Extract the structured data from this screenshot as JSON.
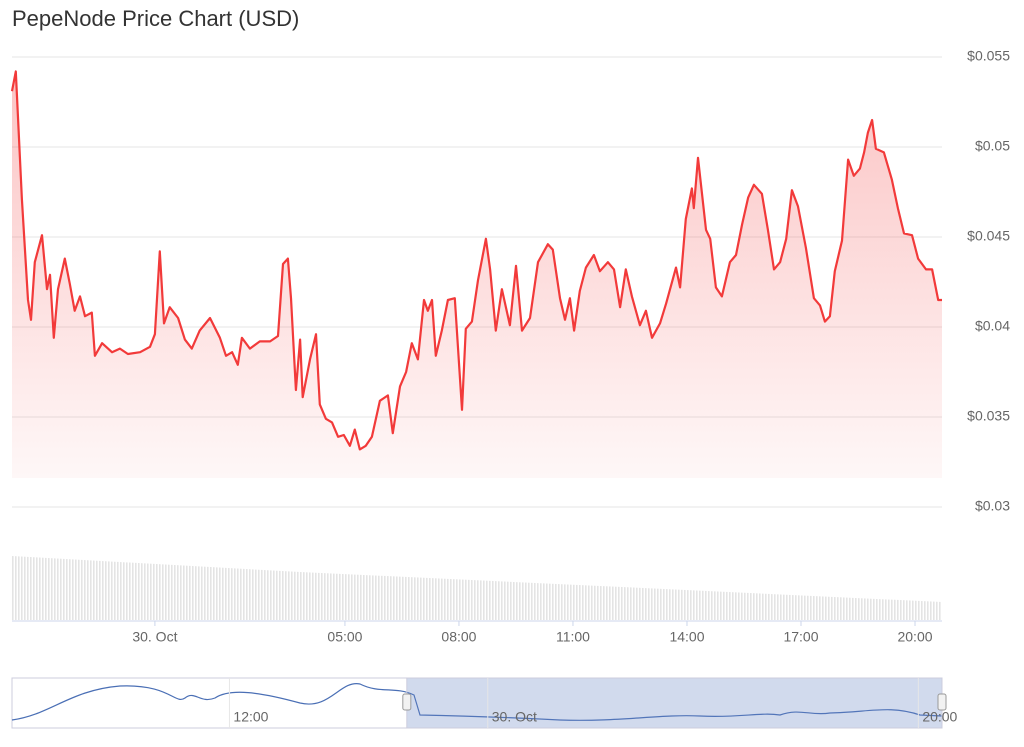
{
  "chart_data": {
    "type": "area",
    "title": "PepeNode Price Chart (USD)",
    "series": [
      {
        "name": "PepeNode",
        "color": "#f23a3a",
        "x": [
          -3.76,
          -3.66,
          -3.5,
          -3.34,
          -3.26,
          -3.16,
          -2.97,
          -2.84,
          -2.76,
          -2.66,
          -2.55,
          -2.37,
          -2.24,
          -2.11,
          -1.97,
          -1.84,
          -1.66,
          -1.58,
          -1.39,
          -1.13,
          -0.92,
          -0.71,
          -0.39,
          -0.13,
          0,
          0.13,
          0.24,
          0.39,
          0.61,
          0.79,
          0.97,
          1.18,
          1.45,
          1.71,
          1.87,
          2.03,
          2.18,
          2.29,
          2.5,
          2.76,
          3.03,
          3.24,
          3.37,
          3.5,
          3.58,
          3.71,
          3.82,
          3.89,
          4.08,
          4.24,
          4.34,
          4.5,
          4.66,
          4.82,
          4.97,
          5.13,
          5.26,
          5.39,
          5.55,
          5.71,
          5.92,
          6.13,
          6.26,
          6.45,
          6.61,
          6.76,
          6.92,
          7.08,
          7.18,
          7.29,
          7.39,
          7.55,
          7.71,
          7.89,
          8.08,
          8.18,
          8.34,
          8.5,
          8.71,
          8.82,
          8.97,
          9.13,
          9.34,
          9.5,
          9.66,
          9.87,
          10.08,
          10.34,
          10.47,
          10.66,
          10.79,
          10.92,
          11.03,
          11.18,
          11.34,
          11.55,
          11.71,
          11.92,
          12.08,
          12.24,
          12.39,
          12.55,
          12.76,
          12.92,
          13.08,
          13.29,
          13.45,
          13.71,
          13.82,
          13.97,
          14.13,
          14.18,
          14.29,
          14.5,
          14.61,
          14.76,
          14.92,
          15.13,
          15.29,
          15.45,
          15.61,
          15.76,
          15.97,
          16.13,
          16.29,
          16.45,
          16.61,
          16.76,
          16.92,
          17.13,
          17.34,
          17.5,
          17.63,
          17.76,
          17.89,
          18.08,
          18.24,
          18.39,
          18.55,
          18.66,
          18.76,
          18.87,
          18.97,
          19.18,
          19.39,
          19.55,
          19.71,
          19.92,
          20.08,
          20.29,
          20.45,
          20.61,
          20.71
        ],
        "values": [
          0.0531,
          0.0542,
          0.0471,
          0.0415,
          0.0404,
          0.0436,
          0.0451,
          0.0421,
          0.0429,
          0.0394,
          0.0421,
          0.0438,
          0.0424,
          0.0409,
          0.0417,
          0.0406,
          0.0408,
          0.0384,
          0.0391,
          0.0386,
          0.0388,
          0.0385,
          0.0386,
          0.0389,
          0.0396,
          0.0442,
          0.0402,
          0.0411,
          0.0405,
          0.0393,
          0.0388,
          0.0398,
          0.0405,
          0.0394,
          0.0384,
          0.0386,
          0.0379,
          0.0394,
          0.0388,
          0.0392,
          0.0392,
          0.0395,
          0.0435,
          0.0438,
          0.0416,
          0.0365,
          0.0393,
          0.0361,
          0.0382,
          0.0396,
          0.0357,
          0.0349,
          0.0347,
          0.0339,
          0.034,
          0.0334,
          0.0343,
          0.0332,
          0.0334,
          0.0339,
          0.0359,
          0.0362,
          0.0341,
          0.0367,
          0.0375,
          0.0391,
          0.0382,
          0.0415,
          0.0409,
          0.0415,
          0.0384,
          0.0398,
          0.0415,
          0.0416,
          0.0354,
          0.0399,
          0.0403,
          0.0426,
          0.0449,
          0.0432,
          0.0398,
          0.0421,
          0.0401,
          0.0434,
          0.0398,
          0.0405,
          0.0436,
          0.0446,
          0.0443,
          0.0416,
          0.0404,
          0.0416,
          0.0398,
          0.042,
          0.0433,
          0.044,
          0.0431,
          0.0436,
          0.0432,
          0.0411,
          0.0432,
          0.0417,
          0.0401,
          0.0409,
          0.0394,
          0.0402,
          0.0413,
          0.0433,
          0.0422,
          0.046,
          0.0477,
          0.0466,
          0.0494,
          0.0454,
          0.0449,
          0.0422,
          0.0417,
          0.0436,
          0.044,
          0.0457,
          0.0472,
          0.0479,
          0.0474,
          0.0454,
          0.0432,
          0.0436,
          0.0449,
          0.0476,
          0.0467,
          0.0444,
          0.0416,
          0.0412,
          0.0403,
          0.0406,
          0.0431,
          0.0448,
          0.0493,
          0.0484,
          0.0488,
          0.0497,
          0.0508,
          0.0515,
          0.0499,
          0.0497,
          0.0482,
          0.0466,
          0.0452,
          0.0451,
          0.0438,
          0.0432,
          0.0432,
          0.0415,
          0.0415
        ]
      }
    ],
    "xlim": [
      -3.76,
      20.71
    ],
    "xticks": [
      {
        "value": 0,
        "label": "30. Oct"
      },
      {
        "value": 5,
        "label": "05:00"
      },
      {
        "value": 8,
        "label": "08:00"
      },
      {
        "value": 11,
        "label": "11:00"
      },
      {
        "value": 14,
        "label": "14:00"
      },
      {
        "value": 17,
        "label": "17:00"
      },
      {
        "value": 20,
        "label": "20:00"
      }
    ],
    "ylim": [
      0.03,
      0.055
    ],
    "yticks": [
      {
        "value": 0.03,
        "label": "$0.03"
      },
      {
        "value": 0.035,
        "label": "$0.035"
      },
      {
        "value": 0.04,
        "label": "$0.04"
      },
      {
        "value": 0.045,
        "label": "$0.045"
      },
      {
        "value": 0.05,
        "label": "$0.05"
      },
      {
        "value": 0.055,
        "label": "$0.055"
      }
    ],
    "grid": true,
    "navigator": {
      "xlim": [
        -22.1,
        21.1
      ],
      "xticks": [
        {
          "value": -12,
          "label": "12:00"
        },
        {
          "value": 0,
          "label": "30. Oct"
        },
        {
          "value": 20,
          "label": "20:00"
        }
      ]
    }
  }
}
